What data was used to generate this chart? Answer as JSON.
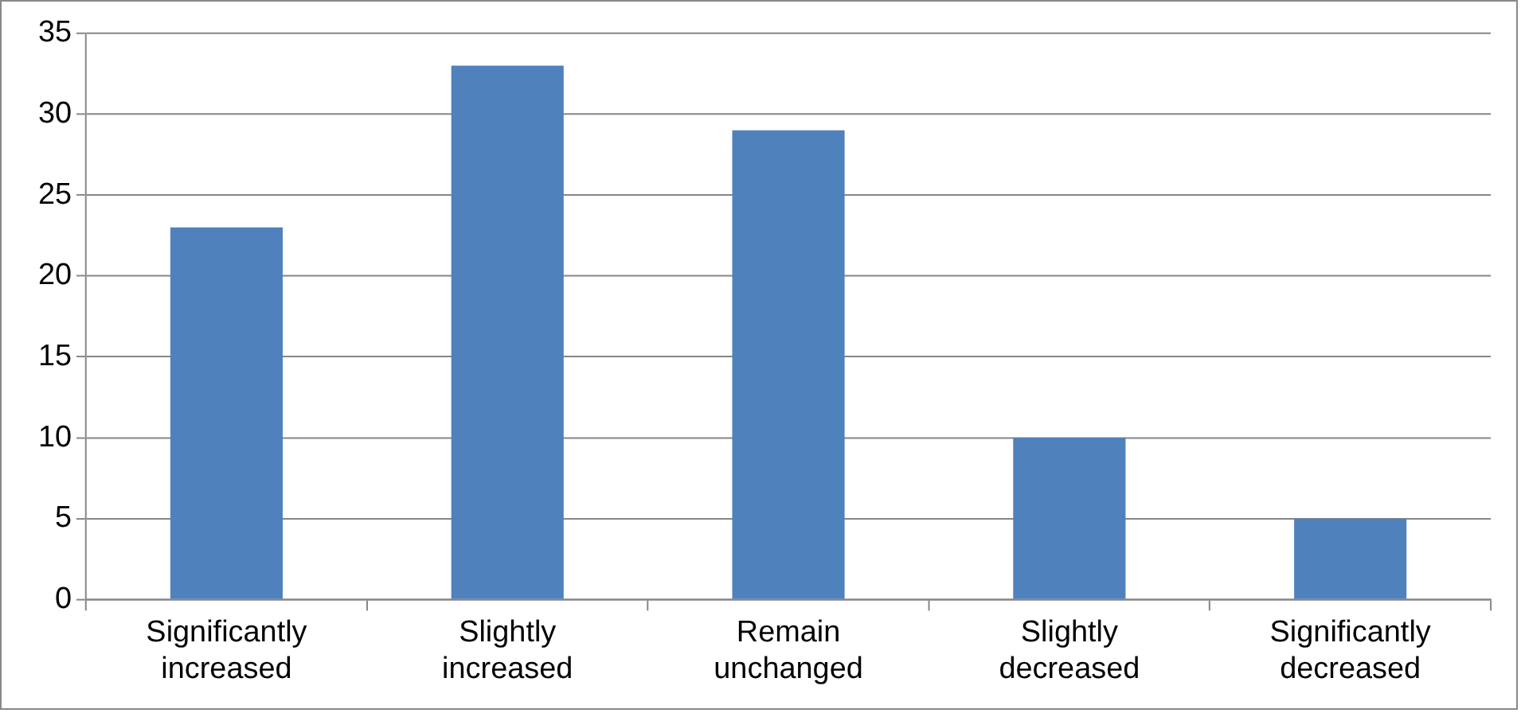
{
  "chart_data": {
    "type": "bar",
    "categories": [
      "Significantly increased",
      "Slightly increased",
      "Remain unchanged",
      "Slightly decreased",
      "Significantly decreased"
    ],
    "values": [
      23,
      33,
      29,
      10,
      5
    ],
    "color": "#4f81bd",
    "ylim": [
      0,
      35
    ],
    "yticks": [
      0,
      5,
      10,
      15,
      20,
      25,
      30,
      35
    ],
    "grid": "y",
    "legend": false
  }
}
